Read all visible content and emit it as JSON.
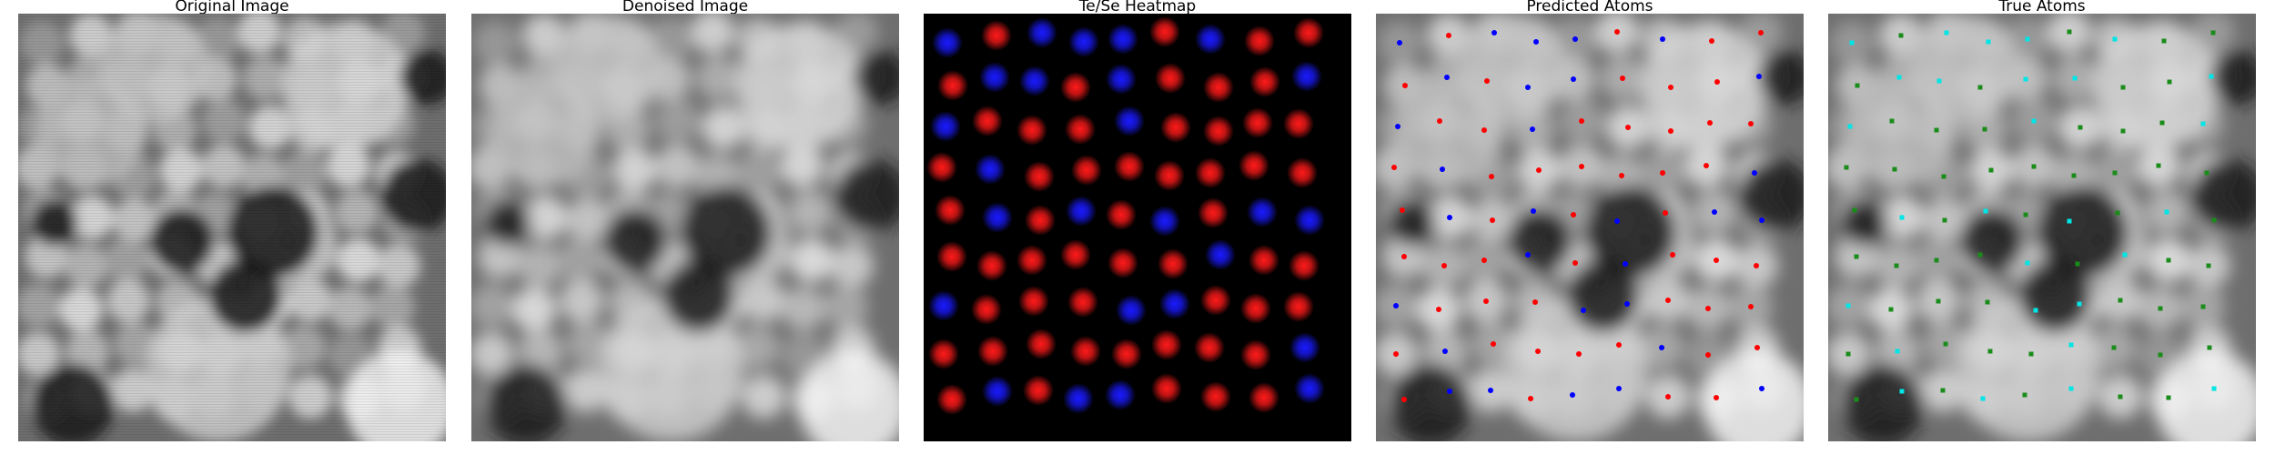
{
  "panels": [
    {
      "title": "Original Image"
    },
    {
      "title": "Denoised Image"
    },
    {
      "title": "Te/Se Heatmap"
    },
    {
      "title": "Predicted Atoms"
    },
    {
      "title": "True Atoms"
    }
  ],
  "colors": {
    "te_heat": "#ff1a1a",
    "se_heat": "#1a1aff",
    "predicted_te": "#ff0000",
    "predicted_se": "#0000ff",
    "true_a": "#00e5e5",
    "true_b": "#1a8c1a"
  },
  "lattice": {
    "rows": 9,
    "cols": 9,
    "heatmap_classes": [
      "BRBBBRBRR",
      "RBBRBRRRB",
      "BRRRBRRRR",
      "RBRRRRRRR",
      "RBRBRBRBB",
      "RRRRRRBRR",
      "BRRRBBRRR",
      "RRRRRRRRB",
      "RBRBBRRRB"
    ],
    "predicted_classes": [
      "BRBBBRBRR",
      "RBRBBRRRB",
      "BRRBRRRRR",
      "RBRRRRRRB",
      "RBRBRBRBB",
      "RRRBRBRRR",
      "BRRRBBRRR",
      "RBRRRRBRR",
      "RBBRBBRRB"
    ],
    "true_classes": [
      "CGCCCGCGG",
      "GCCGCCGGC",
      "CGGGCGGGC",
      "GGGGGGGGG",
      "GCGCGCGCG",
      "GGGGCGCGG",
      "CGGGCCGGG",
      "GCGGGCGGG",
      "GCGCGCGGC"
    ]
  }
}
